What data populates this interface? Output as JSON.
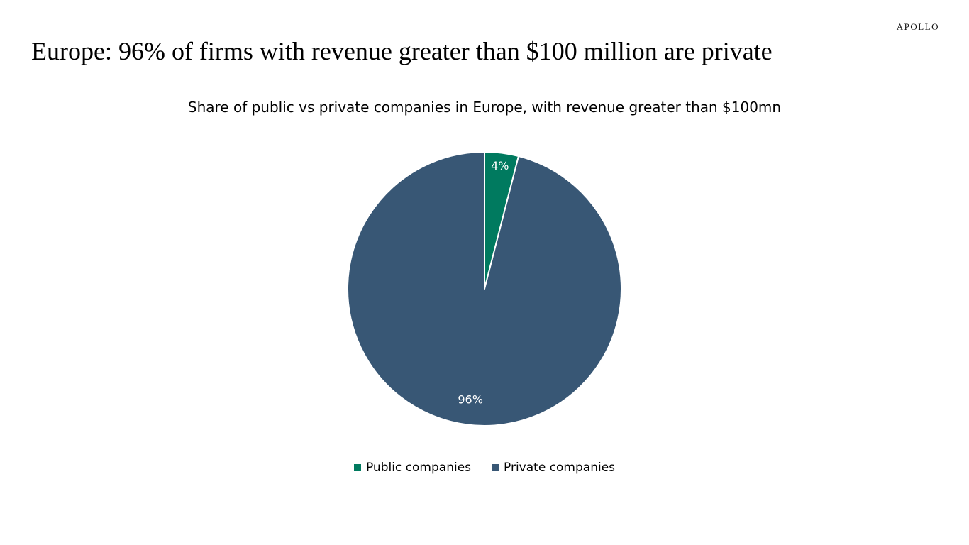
{
  "brand": "APOLLO",
  "slide_title": "Europe: 96% of  firms with revenue greater than $100 million are private",
  "chart_data": {
    "type": "pie",
    "title": "Share of public vs private companies in Europe, with revenue greater than $100mn",
    "slices": [
      {
        "label": "Public companies",
        "value": 4,
        "display": "4%",
        "color": "#007a5f"
      },
      {
        "label": "Private companies",
        "value": 96,
        "display": "96%",
        "color": "#385775"
      }
    ],
    "legend_position": "bottom",
    "start_angle": "12 o'clock",
    "direction": "clockwise"
  }
}
